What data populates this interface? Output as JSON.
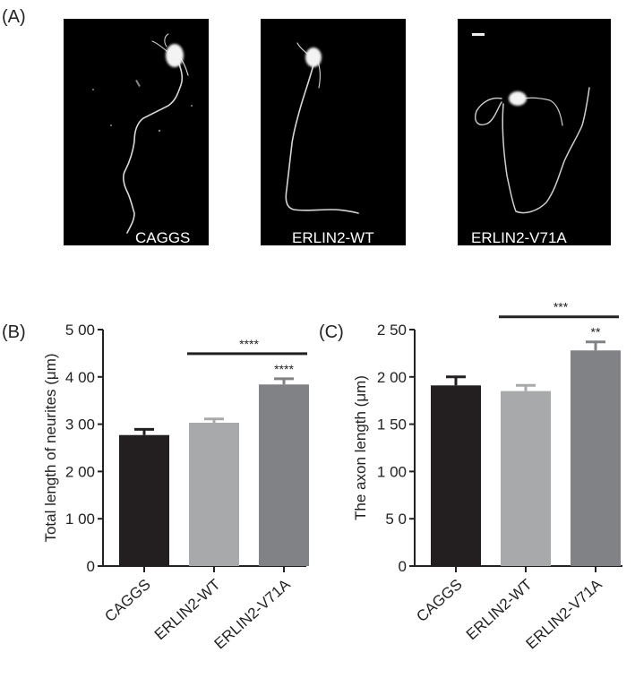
{
  "panel_a": {
    "label": "(A)",
    "images": [
      {
        "caption": "CAGGS"
      },
      {
        "caption": "ERLIN2-WT"
      },
      {
        "caption": "ERLIN2-V71A"
      }
    ]
  },
  "chart_data": [
    {
      "panel": "(B)",
      "type": "bar",
      "categories": [
        "CAGGS",
        "ERLIN2-WT",
        "ERLIN2-V71A"
      ],
      "values": [
        277,
        303,
        384
      ],
      "errors": [
        12,
        8,
        12
      ],
      "bar_colors": [
        "#231f20",
        "#a7a9ab",
        "#808285"
      ],
      "ylabel": "Total length of neurites (μm)",
      "ylim": [
        0,
        500
      ],
      "yticks": [
        "0",
        "1 00",
        "2 00",
        "3 00",
        "4 00",
        "5 00"
      ],
      "significance": {
        "bar_label": "****",
        "bar_from": 1,
        "bar_to": 2,
        "above_label": "****",
        "above_index": 2
      }
    },
    {
      "panel": "(C)",
      "type": "bar",
      "categories": [
        "CAGGS",
        "ERLIN2-WT",
        "ERLIN2-V71A"
      ],
      "values": [
        191,
        185,
        228
      ],
      "errors": [
        9,
        6,
        9
      ],
      "bar_colors": [
        "#231f20",
        "#a7a9ab",
        "#808285"
      ],
      "ylabel": "The axon length (μm)",
      "ylim": [
        0,
        250
      ],
      "yticks": [
        "0",
        "5 0",
        "1 00",
        "1 50",
        "2 00",
        "2 50"
      ],
      "significance": {
        "bar_label": "***",
        "bar_from": 1,
        "bar_to": 2,
        "above_label": "**",
        "above_index": 2
      }
    }
  ]
}
